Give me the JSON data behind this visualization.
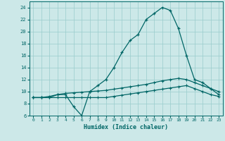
{
  "xlabel": "Humidex (Indice chaleur)",
  "background_color": "#cce8e8",
  "grid_color": "#99cccc",
  "line_color": "#006666",
  "xlim": [
    -0.5,
    23.5
  ],
  "ylim": [
    6,
    25
  ],
  "xticks": [
    0,
    1,
    2,
    3,
    4,
    5,
    6,
    7,
    8,
    9,
    10,
    11,
    12,
    13,
    14,
    15,
    16,
    17,
    18,
    19,
    20,
    21,
    22,
    23
  ],
  "yticks": [
    6,
    8,
    10,
    12,
    14,
    16,
    18,
    20,
    22,
    24
  ],
  "curve1_x": [
    0,
    1,
    2,
    3,
    4,
    5,
    6,
    7,
    8,
    9,
    10,
    11,
    12,
    13,
    14,
    15,
    16,
    17,
    18,
    19,
    20,
    21,
    22,
    23
  ],
  "curve1_y": [
    9,
    9,
    9,
    9.5,
    9.5,
    7.5,
    6,
    10,
    11,
    12,
    14,
    16.5,
    18.5,
    19.5,
    22,
    23.0,
    24,
    23.5,
    20.5,
    16,
    12,
    11.5,
    10.5,
    10
  ],
  "curve2_x": [
    0,
    1,
    2,
    3,
    4,
    5,
    6,
    7,
    8,
    9,
    10,
    11,
    12,
    13,
    14,
    15,
    16,
    17,
    18,
    19,
    20,
    21,
    22,
    23
  ],
  "curve2_y": [
    9,
    9,
    9.2,
    9.5,
    9.7,
    9.8,
    9.9,
    10,
    10.1,
    10.2,
    10.4,
    10.6,
    10.8,
    11.0,
    11.2,
    11.5,
    11.8,
    12.0,
    12.2,
    12.0,
    11.5,
    11.0,
    10.5,
    9.5
  ],
  "curve3_x": [
    0,
    1,
    2,
    3,
    4,
    5,
    6,
    7,
    8,
    9,
    10,
    11,
    12,
    13,
    14,
    15,
    16,
    17,
    18,
    19,
    20,
    21,
    22,
    23
  ],
  "curve3_y": [
    9,
    9,
    9,
    9,
    9,
    9,
    9,
    9,
    9,
    9,
    9.2,
    9.4,
    9.6,
    9.8,
    10.0,
    10.2,
    10.4,
    10.6,
    10.8,
    11.0,
    10.5,
    10.0,
    9.5,
    9.2
  ]
}
